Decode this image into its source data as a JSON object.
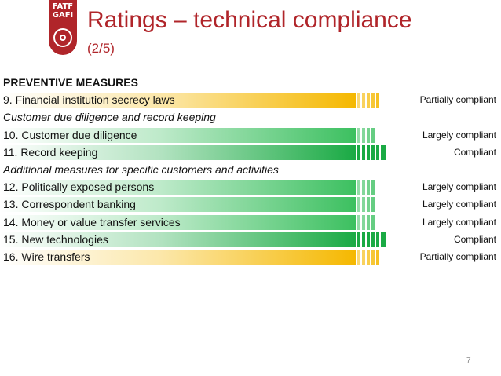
{
  "logo": {
    "line1": "FATF",
    "line2": "GAFI"
  },
  "slide": {
    "title": "Ratings – technical compliance",
    "subtitle": "(2/5)",
    "page_number": "7"
  },
  "colors": {
    "accent": "#b0252a",
    "partial": "#f5b800",
    "largely": "#3cc060",
    "compliant": "#1aaa44"
  },
  "rows": [
    {
      "type": "header",
      "label": "PREVENTIVE MEASURES"
    },
    {
      "type": "item",
      "label": "9. Financial institution secrecy laws",
      "rating": "Partially compliant",
      "level": "partial"
    },
    {
      "type": "subhead",
      "label": "Customer due diligence and record keeping"
    },
    {
      "type": "item",
      "label": "10. Customer due diligence",
      "rating": "Largely compliant",
      "level": "largely"
    },
    {
      "type": "item",
      "label": "11. Record keeping",
      "rating": "Compliant",
      "level": "compliant"
    },
    {
      "type": "subhead",
      "label": "Additional measures for specific customers and activities"
    },
    {
      "type": "item",
      "label": "12. Politically exposed persons",
      "rating": "Largely compliant",
      "level": "largely"
    },
    {
      "type": "item",
      "label": "13. Correspondent banking",
      "rating": "Largely compliant",
      "level": "largely"
    },
    {
      "type": "item",
      "label": "14. Money or value transfer services",
      "rating": "Largely compliant",
      "level": "largely"
    },
    {
      "type": "item",
      "label": "15. New technologies",
      "rating": "Compliant",
      "level": "compliant"
    },
    {
      "type": "item",
      "label": "16. Wire transfers",
      "rating": "Partially compliant",
      "level": "partial"
    }
  ]
}
